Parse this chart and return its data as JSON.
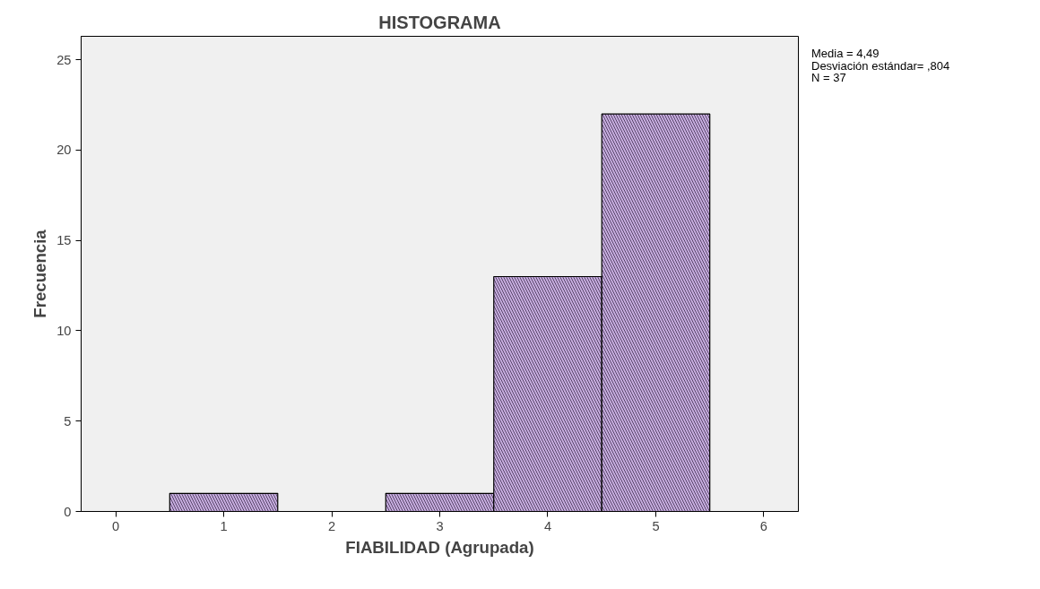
{
  "chart_data": {
    "type": "histogram",
    "title": "HISTOGRAMA",
    "xlabel": "FIABILIDAD (Agrupada)",
    "ylabel": "Frecuencia",
    "bins": [
      0.5,
      1.5,
      2.5,
      3.5,
      4.5,
      5.5
    ],
    "values": [
      1,
      0,
      1,
      13,
      22
    ],
    "color": "#c8aee0",
    "xlim": [
      -0.32,
      6.32
    ],
    "xticks": [
      0,
      1,
      2,
      3,
      4,
      5,
      6
    ],
    "ylim": [
      0,
      26.3
    ],
    "yticks": [
      0,
      5,
      10,
      15,
      20,
      25
    ],
    "grid": false,
    "annotations": [
      "Media = 4,49",
      "Desviación estándar= ,804",
      "N = 37"
    ]
  }
}
